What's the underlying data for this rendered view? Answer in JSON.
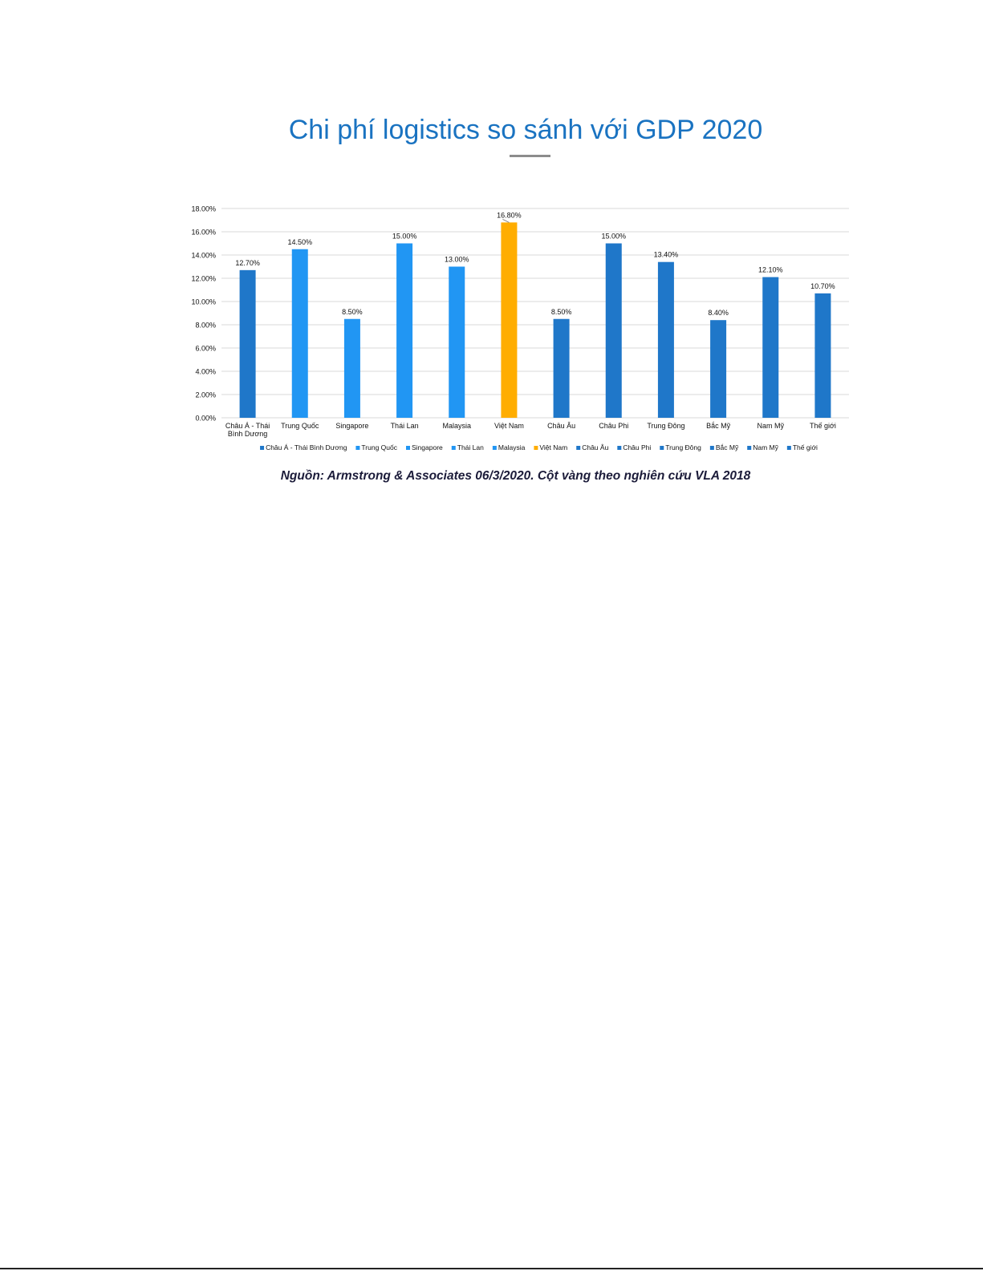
{
  "title": "Chi phí logistics so sánh với GDP 2020",
  "source_note": "Nguồn: Armstrong & Associates 06/3/2020. Cột vàng theo nghiên cứu VLA 2018",
  "colors": {
    "title": "#1a73c1",
    "dark_blue": "#1f77c9",
    "light_blue": "#2196f3",
    "highlight": "#ffad00",
    "grid": "#d9d9d9",
    "axis_text": "#111111"
  },
  "chart_data": {
    "type": "bar",
    "title": "",
    "xlabel": "",
    "ylabel": "",
    "ylim": [
      0,
      18
    ],
    "y_ticks": [
      "0.00%",
      "2.00%",
      "4.00%",
      "6.00%",
      "8.00%",
      "10.00%",
      "12.00%",
      "14.00%",
      "16.00%",
      "18.00%"
    ],
    "grid": true,
    "legend_position": "bottom",
    "categories": [
      "Châu Á - Thái Bình Dương",
      "Trung Quốc",
      "Singapore",
      "Thái Lan",
      "Malaysia",
      "Việt Nam",
      "Châu Âu",
      "Châu Phi",
      "Trung Đông",
      "Bắc Mỹ",
      "Nam Mỹ",
      "Thế giới"
    ],
    "category_label_lines": [
      [
        "Châu Á - Thái",
        "Bình Dương"
      ],
      [
        "Trung Quốc"
      ],
      [
        "Singapore"
      ],
      [
        "Thái Lan"
      ],
      [
        "Malaysia"
      ],
      [
        "Việt Nam"
      ],
      [
        "Châu Âu"
      ],
      [
        "Châu Phi"
      ],
      [
        "Trung Đông"
      ],
      [
        "Bắc Mỹ"
      ],
      [
        "Nam Mỹ"
      ],
      [
        "Thế giới"
      ]
    ],
    "values": [
      12.7,
      14.5,
      8.5,
      15.0,
      13.0,
      16.8,
      8.5,
      15.0,
      13.4,
      8.4,
      12.1,
      10.7
    ],
    "data_labels": [
      "12.70%",
      "14.50%",
      "8.50%",
      "15.00%",
      "13.00%",
      "16.80%",
      "8.50%",
      "15.00%",
      "13.40%",
      "8.40%",
      "12.10%",
      "10.70%"
    ],
    "bar_colors": [
      "#1f77c9",
      "#2196f3",
      "#2196f3",
      "#2196f3",
      "#2196f3",
      "#ffad00",
      "#1f77c9",
      "#1f77c9",
      "#1f77c9",
      "#1f77c9",
      "#1f77c9",
      "#1f77c9"
    ],
    "legend": [
      "Châu Á - Thái Bình Dương",
      "Trung Quốc",
      "Singapore",
      "Thái Lan",
      "Malaysia",
      "Việt Nam",
      "Châu Âu",
      "Châu Phi",
      "Trung Đông",
      "Bắc Mỹ",
      "Nam Mỹ",
      "Thế giới"
    ]
  }
}
